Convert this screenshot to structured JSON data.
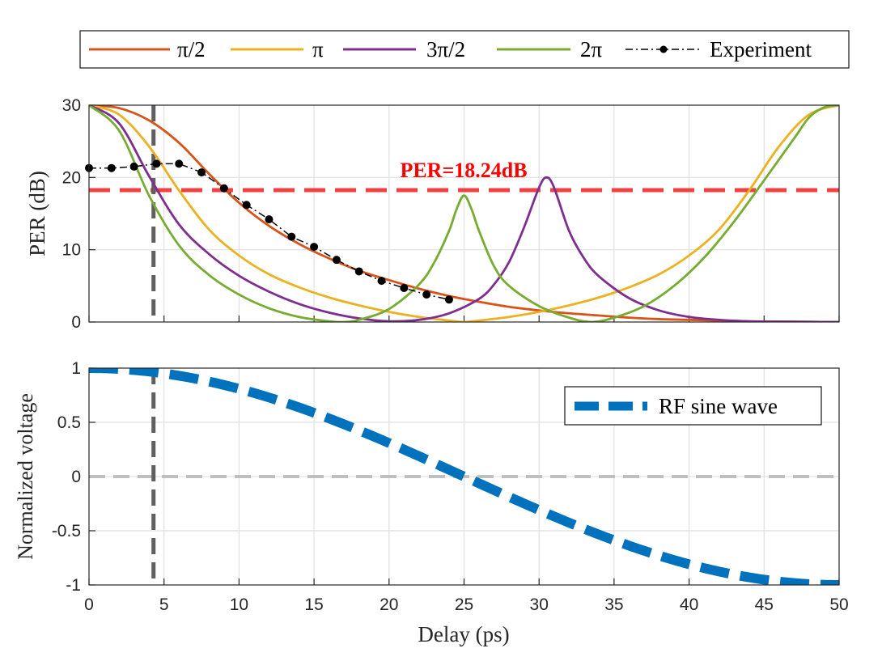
{
  "chart_data": [
    {
      "type": "line",
      "title": "",
      "xlabel": "",
      "ylabel": "PER (dB)",
      "xlim": [
        0,
        50
      ],
      "ylim": [
        0,
        30
      ],
      "xticks": [
        0,
        5,
        10,
        15,
        20,
        25,
        30,
        35,
        40,
        45,
        50
      ],
      "yticks": [
        0,
        10,
        20,
        30
      ],
      "xtick_labels_shown": false,
      "grid": true,
      "legend_position": "top (above plot, horizontal)",
      "legend": [
        "π/2",
        "π",
        "3π/2",
        "2π",
        "Experiment"
      ],
      "series": [
        {
          "name": "π/2",
          "color": "#D95319",
          "x": [
            0,
            2,
            4,
            6,
            8,
            10,
            12,
            14,
            16,
            18,
            20,
            22,
            24,
            26,
            28,
            30,
            32,
            34,
            36,
            38,
            40,
            42,
            44,
            46,
            48,
            50
          ],
          "values": [
            30,
            29.6,
            27.9,
            24.8,
            20.5,
            16.5,
            13.3,
            10.8,
            8.8,
            7.1,
            5.8,
            4.6,
            3.6,
            2.8,
            2.1,
            1.6,
            1.2,
            0.9,
            0.6,
            0.4,
            0.3,
            0.2,
            0.1,
            0.05,
            0.02,
            0
          ]
        },
        {
          "name": "π",
          "color": "#EDB120",
          "x": [
            0,
            2,
            4,
            6,
            8,
            10,
            12,
            14,
            16,
            18,
            20,
            22,
            24,
            25,
            26,
            28,
            30,
            32,
            34,
            36,
            38,
            40,
            42,
            44,
            46,
            48,
            50
          ],
          "values": [
            30,
            28.7,
            24.3,
            18.2,
            12.8,
            9.2,
            6.6,
            4.8,
            3.4,
            2.3,
            1.4,
            0.7,
            0.2,
            0,
            0.2,
            0.7,
            1.4,
            2.3,
            3.4,
            4.8,
            6.6,
            9.2,
            12.8,
            18.2,
            24.3,
            28.7,
            30
          ]
        },
        {
          "name": "3π/2",
          "color": "#7E2F8E",
          "x": [
            0,
            2,
            4,
            6,
            8,
            10,
            12,
            14,
            16,
            18,
            20,
            22,
            24,
            26,
            27,
            28,
            29,
            30,
            30.5,
            31,
            32,
            33,
            34,
            36,
            38,
            40,
            42,
            44,
            46,
            48,
            50
          ],
          "values": [
            30,
            27.5,
            20.2,
            13.5,
            9.4,
            6.4,
            4.2,
            2.5,
            1.3,
            0.5,
            0.1,
            0.3,
            1.2,
            3.2,
            5.2,
            8.3,
            13.1,
            18.6,
            20,
            18.6,
            12.6,
            8.8,
            6.3,
            3.3,
            1.6,
            0.7,
            0.3,
            0.1,
            0.05,
            0.02,
            0
          ]
        },
        {
          "name": "2π",
          "color": "#77AC30",
          "x": [
            0,
            2,
            4,
            6,
            8,
            10,
            12,
            14,
            16,
            17,
            18,
            20,
            22,
            23,
            24,
            24.5,
            25,
            25.5,
            26,
            27,
            28,
            30,
            32,
            33.5,
            35,
            37,
            39,
            41,
            43,
            45,
            47,
            48,
            49,
            50
          ],
          "values": [
            30,
            26.5,
            17.5,
            10.6,
            6.5,
            3.8,
            1.9,
            0.7,
            0.1,
            0,
            0.3,
            1.8,
            5.2,
            8.2,
            12.6,
            15.6,
            17.5,
            15.6,
            12.6,
            7.7,
            5,
            2.2,
            0.6,
            0,
            0.6,
            2.2,
            5,
            8.9,
            13.9,
            19.6,
            25.4,
            28.3,
            29.7,
            30
          ]
        }
      ],
      "experiment": {
        "name": "Experiment",
        "color": "#000000",
        "x": [
          0,
          1.5,
          3,
          4.5,
          6,
          7.5,
          9,
          10.5,
          12,
          13.5,
          15,
          16.5,
          18,
          19.5,
          21,
          22.5,
          24
        ],
        "values": [
          21.3,
          21.3,
          21.5,
          21.9,
          21.9,
          20.7,
          18.5,
          16.2,
          14.2,
          11.8,
          10.4,
          8.6,
          7.0,
          5.7,
          4.7,
          3.8,
          3.1
        ]
      },
      "reference_line": {
        "label": "PER=18.24dB",
        "value": 18.24,
        "color": "#F24040"
      },
      "marker_x": 4.3
    },
    {
      "type": "line",
      "title": "",
      "xlabel": "Delay (ps)",
      "ylabel": "Normalized voltage",
      "xlim": [
        0,
        50
      ],
      "ylim": [
        -1,
        1
      ],
      "xticks": [
        0,
        5,
        10,
        15,
        20,
        25,
        30,
        35,
        40,
        45,
        50
      ],
      "yticks": [
        -1,
        -0.5,
        0,
        0.5,
        1
      ],
      "ytick_labels": [
        "-1",
        "-0.5",
        "0",
        "0.5",
        "1"
      ],
      "grid": true,
      "legend_position": "top-right",
      "legend": [
        "RF sine wave"
      ],
      "series": [
        {
          "name": "RF sine wave",
          "color": "#0072BD",
          "function": "cos(2π·x/100)",
          "period_ps": 100
        }
      ],
      "zero_line": {
        "value": 0,
        "color": "#BFBFBF"
      },
      "marker_x": 4.3
    }
  ]
}
